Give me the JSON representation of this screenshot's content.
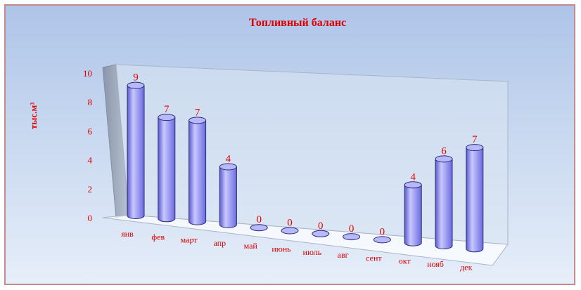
{
  "colors": {
    "accent_text": "#e00000",
    "bar_fill": "#8f8ff0",
    "bar_top": "#b8b8ff",
    "bar_stroke": "#2b2b70",
    "frame_border": "#c98a8a"
  },
  "chart_data": {
    "type": "bar",
    "style": "3d-cylinder",
    "title": "Топливный баланс",
    "ylabel": "тыс.м³",
    "xlabel": "",
    "ylim": [
      0,
      10
    ],
    "yticks": [
      "0",
      "2",
      "4",
      "6",
      "8",
      "10"
    ],
    "categories": [
      "янв",
      "фев",
      "март",
      "апр",
      "май",
      "июнь",
      "июль",
      "авг",
      "сент",
      "окт",
      "нояб",
      "дек"
    ],
    "values": [
      9,
      7,
      7,
      4,
      0,
      0,
      0,
      0,
      0,
      4,
      6,
      7
    ],
    "data_labels": [
      "9",
      "7",
      "7",
      "4",
      "0",
      "0",
      "0",
      "0",
      "0",
      "4",
      "6",
      "7"
    ],
    "grid": false,
    "legend": "none"
  }
}
